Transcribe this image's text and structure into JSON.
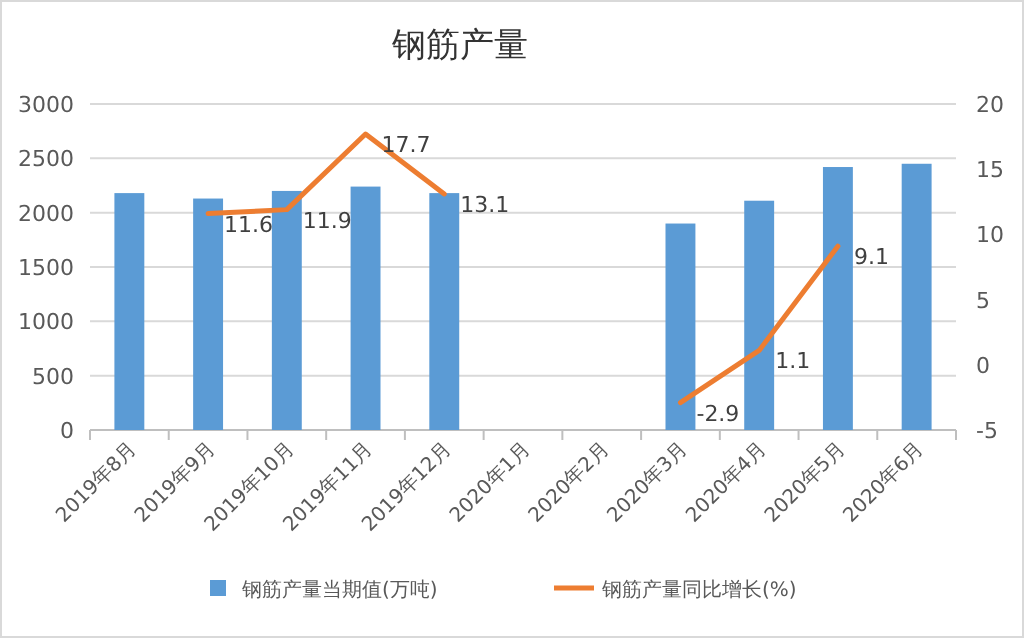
{
  "chart_data": {
    "type": "bar",
    "title": "钢筋产量",
    "categories": [
      "2019年8月",
      "2019年9月",
      "2019年10月",
      "2019年11月",
      "2019年12月",
      "2020年1月",
      "2020年2月",
      "2020年3月",
      "2020年4月",
      "2020年5月",
      "2020年6月"
    ],
    "series": [
      {
        "name": "钢筋产量当期值(万吨)",
        "color": "#5b9bd5",
        "values": [
          2180,
          2130,
          2200,
          2240,
          2180,
          null,
          null,
          1900,
          2110,
          2420,
          2450
        ]
      },
      {
        "name": "钢筋产量同比增长(%)",
        "type": "line",
        "axis": "y2",
        "color": "#ed7d31",
        "values": [
          null,
          11.6,
          11.9,
          17.7,
          13.1,
          null,
          null,
          -2.9,
          1.1,
          9.1,
          null
        ],
        "value_labels": [
          null,
          "11.6",
          "11.9",
          "17.7",
          "13.1",
          null,
          null,
          "-2.9",
          "1.1",
          "9.1",
          null
        ]
      }
    ],
    "ylim": [
      0,
      3000
    ],
    "yticks": [
      0,
      500,
      1000,
      1500,
      2000,
      2500,
      3000
    ],
    "y2lim": [
      -5,
      20
    ],
    "y2ticks": [
      -5,
      0,
      5,
      10,
      15,
      20
    ],
    "grid": "y",
    "legend": "bottom",
    "marker": "none",
    "line_style": "solid"
  }
}
